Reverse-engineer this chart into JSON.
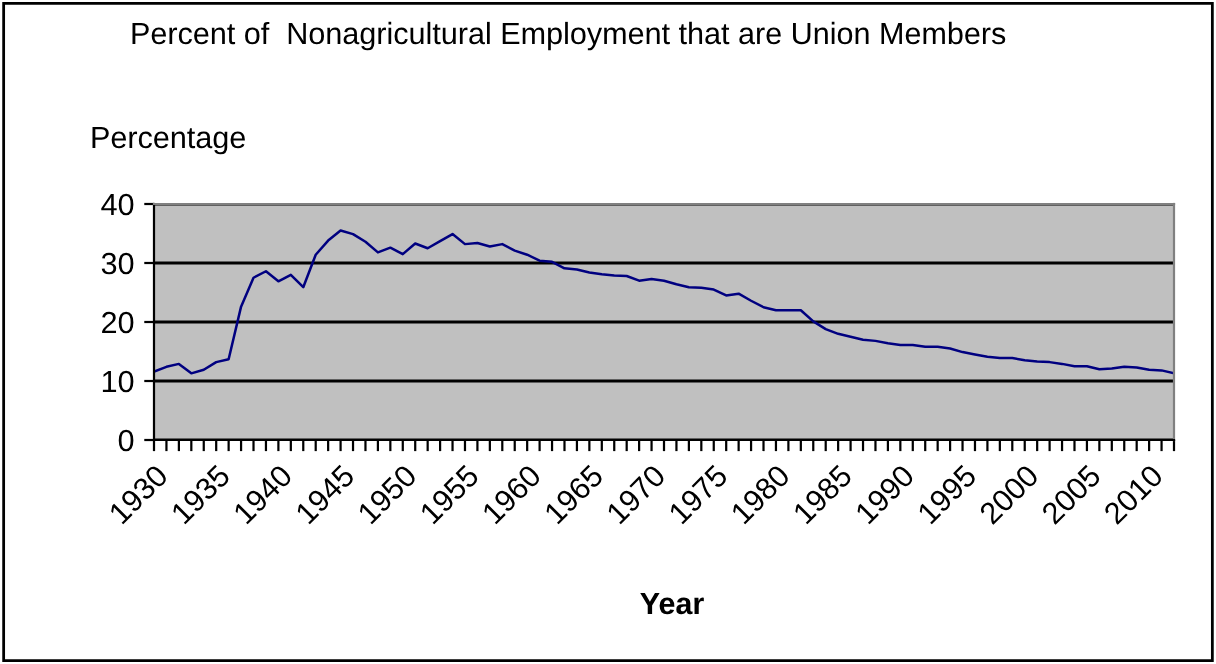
{
  "chart_data": {
    "type": "line",
    "title": "Percent of  Nonagricultural Employment that are Union Members",
    "ylabel": "Percentage",
    "xlabel": "Year",
    "categories": [
      "1930",
      null,
      null,
      null,
      null,
      "1935",
      null,
      null,
      null,
      null,
      "1940",
      null,
      null,
      null,
      null,
      "1945",
      null,
      null,
      null,
      null,
      "1950",
      null,
      null,
      null,
      null,
      "1955",
      null,
      null,
      null,
      null,
      "1960",
      null,
      null,
      null,
      null,
      "1965",
      null,
      null,
      null,
      null,
      "1970",
      null,
      null,
      null,
      null,
      "1975",
      null,
      null,
      null,
      null,
      "1980",
      null,
      null,
      null,
      null,
      "1985",
      null,
      null,
      null,
      null,
      "1990",
      null,
      null,
      null,
      null,
      "1995",
      null,
      null,
      null,
      null,
      "2000",
      null,
      null,
      null,
      null,
      "2005",
      null,
      null,
      null,
      null,
      "2010",
      null,
      null
    ],
    "series": [
      {
        "color": "#000080",
        "values": [
          11.6,
          12.4,
          12.9,
          11.3,
          11.9,
          13.2,
          13.7,
          22.6,
          27.5,
          28.6,
          26.9,
          28.0,
          25.9,
          31.4,
          33.8,
          35.5,
          34.9,
          33.6,
          31.8,
          32.6,
          31.5,
          33.3,
          32.5,
          33.7,
          34.9,
          33.2,
          33.4,
          32.8,
          33.2,
          32.1,
          31.4,
          30.4,
          30.2,
          29.1,
          28.9,
          28.4,
          28.1,
          27.9,
          27.8,
          27.0,
          27.3,
          27.0,
          26.4,
          25.9,
          25.8,
          25.5,
          24.5,
          24.8,
          23.6,
          22.5,
          22.0,
          22.0,
          22.0,
          20.1,
          18.8,
          18.0,
          17.5,
          17.0,
          16.8,
          16.4,
          16.1,
          16.1,
          15.8,
          15.8,
          15.5,
          14.9,
          14.5,
          14.1,
          13.9,
          13.9,
          13.5,
          13.3,
          13.2,
          12.9,
          12.5,
          12.5,
          12.0,
          12.1,
          12.4,
          12.3,
          11.9,
          11.8,
          11.3
        ]
      }
    ],
    "ylim": [
      0,
      40
    ],
    "yticks": [
      0,
      10,
      20,
      30,
      40
    ],
    "grid": "y",
    "legend": false,
    "marker": "none",
    "line_style": "solid"
  }
}
